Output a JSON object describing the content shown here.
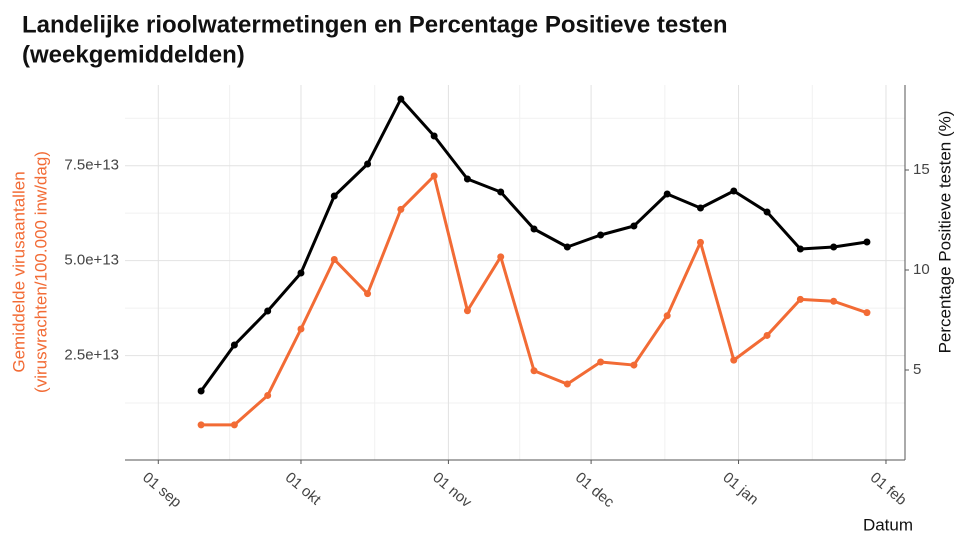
{
  "chart_data": {
    "type": "line",
    "title": [
      "Landelijke rioolwatermetingen en Percentage Positieve testen",
      "(weekgemiddelden)"
    ],
    "x_label": "Datum",
    "y_label": [
      "Gemiddelde virusaantallen",
      "(virusvrachten/100.000 inw/dag)"
    ],
    "y2_label": "Percentage Positieve testen (%)",
    "x": [
      "10 sep",
      "17 sep",
      "24 sep",
      "01 okt",
      "08 okt",
      "15 okt",
      "22 okt",
      "29 okt",
      "05 nov",
      "12 nov",
      "19 nov",
      "26 nov",
      "03 dec",
      "10 dec",
      "17 dec",
      "24 dec",
      "31 dec",
      "07 jan",
      "14 jan",
      "21 jan",
      "28 jan"
    ],
    "xlim": [
      "25 aug",
      "05 feb"
    ],
    "xticks": [
      "01 sep",
      "01 okt",
      "01 nov",
      "01 dec",
      "01 jan",
      "01 feb"
    ],
    "ylim": [
      -2500000000000.0,
      96250000000000.0
    ],
    "yticks": [
      {
        "value": 25000000000000.0,
        "label": "2.5e+13"
      },
      {
        "value": 50000000000000.0,
        "label": "5.0e+13"
      },
      {
        "value": 75000000000000.0,
        "label": "7.5e+13"
      }
    ],
    "y2lim": [
      0.5,
      19.25
    ],
    "y2ticks": [
      5,
      10,
      15
    ],
    "grid": true,
    "series": [
      {
        "name": "Gemiddelde virusaantallen",
        "color": "#f26b35",
        "axis": "y",
        "values": [
          6750000000000.0,
          6750000000000.0,
          14500000000000.0,
          32000000000000.0,
          50300000000000.0,
          41300000000000.0,
          63500000000000.0,
          72300000000000.0,
          36800000000000.0,
          51000000000000.0,
          21000000000000.0,
          17500000000000.0,
          23300000000000.0,
          22500000000000.0,
          35500000000000.0,
          54800000000000.0,
          23800000000000.0,
          30300000000000.0,
          39800000000000.0,
          39300000000000.0,
          36300000000000.0
        ]
      },
      {
        "name": "Percentage Positieve testen",
        "color": "#000000",
        "axis": "y2",
        "values": [
          3.95,
          6.25,
          7.95,
          9.85,
          13.7,
          15.3,
          18.55,
          16.7,
          14.55,
          13.9,
          12.05,
          11.15,
          11.75,
          12.2,
          13.8,
          13.1,
          13.95,
          12.9,
          11.05,
          11.15,
          11.4
        ]
      }
    ]
  }
}
